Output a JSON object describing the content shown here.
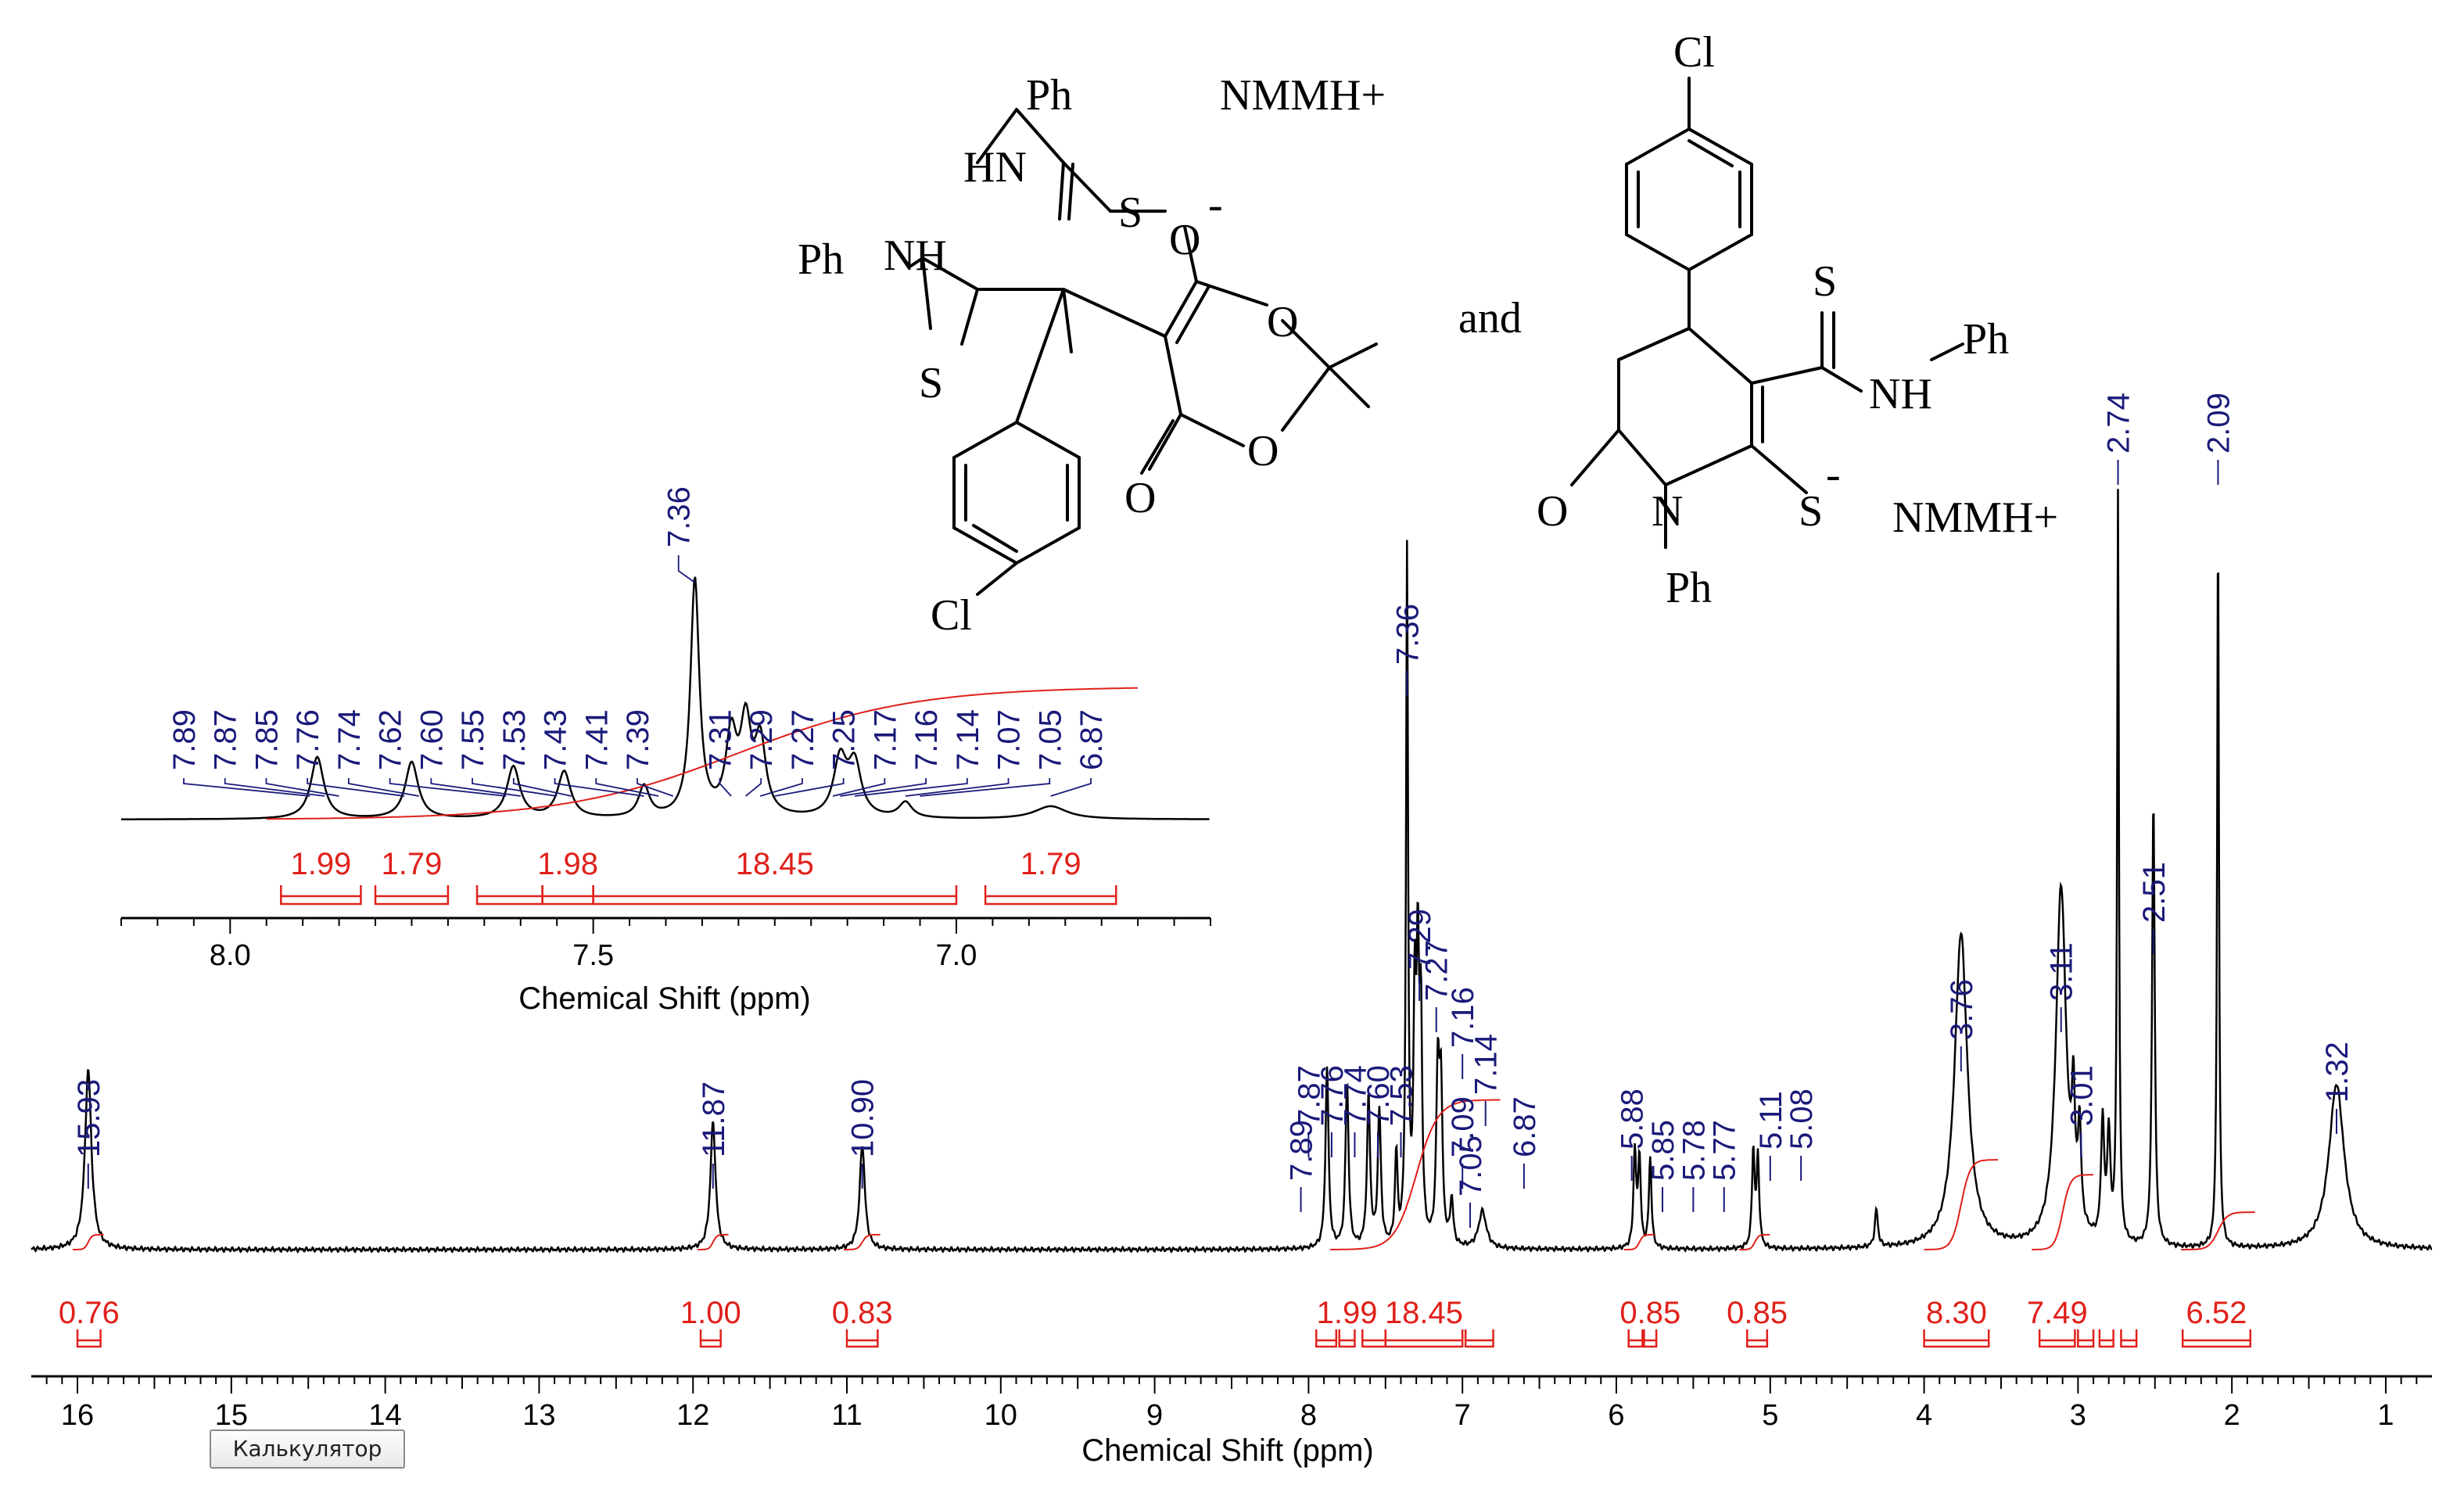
{
  "chart_data": {
    "type": "line",
    "xlabel": "Chemical Shift (ppm)",
    "xlim": [
      16.3,
      0.7
    ],
    "x_ticks": [
      16,
      15,
      14,
      13,
      12,
      11,
      10,
      9,
      8,
      7,
      6,
      5,
      4,
      3,
      2,
      1
    ],
    "peaks": [
      {
        "ppm": 15.93,
        "h": 0.24,
        "w": 0.025
      },
      {
        "ppm": 11.87,
        "h": 0.17,
        "w": 0.02
      },
      {
        "ppm": 10.9,
        "h": 0.14,
        "w": 0.02
      },
      {
        "ppm": 7.88,
        "h": 0.24,
        "w": 0.012
      },
      {
        "ppm": 7.75,
        "h": 0.22,
        "w": 0.012
      },
      {
        "ppm": 7.61,
        "h": 0.2,
        "w": 0.012
      },
      {
        "ppm": 7.54,
        "h": 0.18,
        "w": 0.012
      },
      {
        "ppm": 7.43,
        "h": 0.12,
        "w": 0.01
      },
      {
        "ppm": 7.36,
        "h": 0.92,
        "w": 0.008
      },
      {
        "ppm": 7.31,
        "h": 0.3,
        "w": 0.01
      },
      {
        "ppm": 7.29,
        "h": 0.34,
        "w": 0.01
      },
      {
        "ppm": 7.27,
        "h": 0.28,
        "w": 0.01
      },
      {
        "ppm": 7.16,
        "h": 0.22,
        "w": 0.012
      },
      {
        "ppm": 7.14,
        "h": 0.2,
        "w": 0.012
      },
      {
        "ppm": 7.07,
        "h": 0.06,
        "w": 0.012
      },
      {
        "ppm": 6.87,
        "h": 0.05,
        "w": 0.03
      },
      {
        "ppm": 5.88,
        "h": 0.13,
        "w": 0.01
      },
      {
        "ppm": 5.85,
        "h": 0.12,
        "w": 0.01
      },
      {
        "ppm": 5.78,
        "h": 0.12,
        "w": 0.01
      },
      {
        "ppm": 5.11,
        "h": 0.13,
        "w": 0.01
      },
      {
        "ppm": 5.08,
        "h": 0.12,
        "w": 0.01
      },
      {
        "ppm": 4.31,
        "h": 0.05,
        "w": 0.012
      },
      {
        "ppm": 3.76,
        "h": 0.42,
        "w": 0.05
      },
      {
        "ppm": 3.11,
        "h": 0.48,
        "w": 0.04
      },
      {
        "ppm": 3.03,
        "h": 0.15,
        "w": 0.012
      },
      {
        "ppm": 2.99,
        "h": 0.13,
        "w": 0.012
      },
      {
        "ppm": 2.84,
        "h": 0.16,
        "w": 0.012
      },
      {
        "ppm": 2.8,
        "h": 0.14,
        "w": 0.012
      },
      {
        "ppm": 2.74,
        "h": 1.0,
        "w": 0.007
      },
      {
        "ppm": 2.51,
        "h": 0.6,
        "w": 0.01
      },
      {
        "ppm": 2.09,
        "h": 0.97,
        "w": 0.007
      },
      {
        "ppm": 1.32,
        "h": 0.22,
        "w": 0.06
      }
    ],
    "peak_labels": [
      "15.93",
      "11.87",
      "10.90",
      "7.89",
      "7.87",
      "7.76",
      "7.74",
      "7.60",
      "7.53",
      "7.36",
      "7.29",
      "7.27",
      "7.16",
      "7.14",
      "7.09",
      "7.05",
      "6.87",
      "5.88",
      "5.85",
      "5.78",
      "5.77",
      "5.11",
      "5.08",
      "3.76",
      "3.11",
      "3.01",
      "2.74",
      "2.51",
      "2.09",
      "1.32"
    ],
    "integrals": [
      {
        "from": 16.0,
        "to": 15.85,
        "value": "0.76"
      },
      {
        "from": 11.95,
        "to": 11.82,
        "value": "1.00"
      },
      {
        "from": 11.0,
        "to": 10.8,
        "value": "0.83"
      },
      {
        "from": 7.95,
        "to": 7.82,
        "value": ""
      },
      {
        "from": 7.8,
        "to": 7.7,
        "value": "1.99"
      },
      {
        "from": 7.65,
        "to": 7.5,
        "value": ""
      },
      {
        "from": 7.5,
        "to": 7.0,
        "value": "18.45"
      },
      {
        "from": 6.98,
        "to": 6.8,
        "value": ""
      },
      {
        "from": 5.92,
        "to": 5.83,
        "value": ""
      },
      {
        "from": 5.82,
        "to": 5.74,
        "value": "0.85"
      },
      {
        "from": 5.15,
        "to": 5.02,
        "value": "0.85"
      },
      {
        "from": 4.0,
        "to": 3.58,
        "value": "8.30"
      },
      {
        "from": 3.25,
        "to": 3.02,
        "value": "7.49"
      },
      {
        "from": 3.0,
        "to": 2.9,
        "value": ""
      },
      {
        "from": 2.86,
        "to": 2.77,
        "value": ""
      },
      {
        "from": 2.72,
        "to": 2.62,
        "value": ""
      },
      {
        "from": 2.32,
        "to": 1.88,
        "value": "6.52"
      }
    ],
    "inset": {
      "xlabel": "Chemical Shift (ppm)",
      "xlim": [
        8.15,
        6.65
      ],
      "x_ticks": [
        "8.0",
        "7.5",
        "7.0"
      ],
      "peak_labels": [
        "7.89",
        "7.87",
        "7.85",
        "7.76",
        "7.74",
        "7.62",
        "7.60",
        "7.55",
        "7.53",
        "7.43",
        "7.41",
        "7.39",
        "7.36",
        "7.31",
        "7.29",
        "7.27",
        "7.25",
        "7.17",
        "7.16",
        "7.14",
        "7.07",
        "7.05",
        "6.87"
      ],
      "integrals": [
        {
          "from": 7.93,
          "to": 7.82,
          "value": "1.99"
        },
        {
          "from": 7.8,
          "to": 7.7,
          "value": "1.79"
        },
        {
          "from": 7.66,
          "to": 7.57,
          "value": ""
        },
        {
          "from": 7.57,
          "to": 7.5,
          "value": "1.98"
        },
        {
          "from": 7.5,
          "to": 7.0,
          "value": "18.45"
        },
        {
          "from": 6.96,
          "to": 6.78,
          "value": "1.79"
        }
      ]
    }
  },
  "structure": {
    "left_labels": [
      "Ph",
      "HN",
      "S",
      "O",
      "Ph",
      "NH",
      "S",
      "O",
      "O",
      "O",
      "Cl",
      "NMMH+"
    ],
    "right_labels": [
      "Cl",
      "S",
      "NH",
      "Ph",
      "O",
      "N",
      "S",
      "Ph",
      "NMMH+"
    ],
    "connector": "and",
    "charge": "-"
  },
  "overlay": {
    "calculator_label": "Калькулятор"
  }
}
